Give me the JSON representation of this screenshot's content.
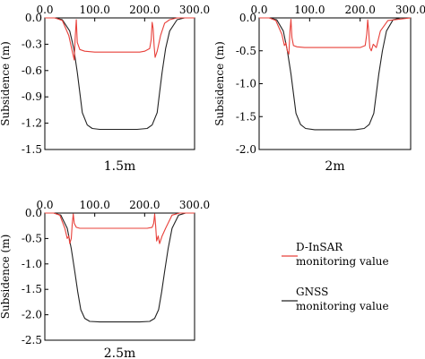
{
  "legend": {
    "items": [
      {
        "label_line1": "D-InSAR",
        "label_line2": "monitoring value",
        "color": "#e8403a"
      },
      {
        "label_line1": "GNSS",
        "label_line2": "monitoring value",
        "color": "#222222"
      }
    ]
  },
  "chart_data": [
    {
      "type": "line",
      "title": "1.5m",
      "ylabel": "Subsidence (m)",
      "xlim": [
        0,
        300
      ],
      "ylim": [
        -1.5,
        0
      ],
      "x_ticks": [
        "0.0",
        "100.0",
        "200.0",
        "300.0"
      ],
      "y_ticks": [
        "0.0",
        "-0.3",
        "-0.6",
        "-0.9",
        "-1.2",
        "-1.5"
      ],
      "series": [
        {
          "name": "GNSS",
          "color": "#222222",
          "x": [
            0,
            20,
            35,
            50,
            58,
            65,
            70,
            75,
            85,
            95,
            110,
            150,
            185,
            205,
            215,
            225,
            230,
            235,
            242,
            250,
            265,
            280,
            300
          ],
          "y": [
            0,
            0,
            -0.02,
            -0.15,
            -0.35,
            -0.62,
            -0.85,
            -1.08,
            -1.22,
            -1.26,
            -1.27,
            -1.27,
            -1.27,
            -1.26,
            -1.22,
            -1.08,
            -0.85,
            -0.62,
            -0.35,
            -0.15,
            -0.02,
            0,
            0
          ]
        },
        {
          "name": "D-InSAR",
          "color": "#e8403a",
          "x": [
            0,
            20,
            35,
            48,
            55,
            59,
            61,
            63,
            65,
            70,
            80,
            100,
            150,
            190,
            200,
            210,
            213,
            215,
            217,
            219,
            221,
            225,
            232,
            240,
            250,
            265,
            300
          ],
          "y": [
            0,
            0,
            -0.03,
            -0.2,
            -0.38,
            -0.48,
            -0.2,
            -0.02,
            -0.28,
            -0.36,
            -0.38,
            -0.39,
            -0.39,
            -0.39,
            -0.38,
            -0.35,
            -0.25,
            -0.05,
            -0.12,
            -0.32,
            -0.45,
            -0.38,
            -0.2,
            -0.06,
            -0.02,
            0,
            0
          ]
        }
      ]
    },
    {
      "type": "line",
      "title": "2m",
      "ylabel": "Subsidence (m)",
      "xlim": [
        0,
        300
      ],
      "ylim": [
        -2.0,
        0
      ],
      "x_ticks": [
        "0.0",
        "100.0",
        "200.0",
        "300.0"
      ],
      "y_ticks": [
        "0.0",
        "-0.5",
        "-1.0",
        "-1.5",
        "-2.0"
      ],
      "series": [
        {
          "name": "GNSS",
          "color": "#222222",
          "x": [
            0,
            20,
            35,
            48,
            56,
            63,
            68,
            73,
            82,
            92,
            110,
            150,
            190,
            208,
            218,
            227,
            232,
            237,
            244,
            252,
            265,
            280,
            300
          ],
          "y": [
            0,
            0,
            -0.03,
            -0.2,
            -0.5,
            -0.85,
            -1.15,
            -1.45,
            -1.62,
            -1.68,
            -1.7,
            -1.7,
            -1.7,
            -1.68,
            -1.62,
            -1.45,
            -1.15,
            -0.85,
            -0.5,
            -0.2,
            -0.03,
            0,
            0
          ]
        },
        {
          "name": "D-InSAR",
          "color": "#e8403a",
          "x": [
            0,
            20,
            33,
            45,
            50,
            53,
            56,
            59,
            61,
            63,
            65,
            68,
            75,
            90,
            150,
            200,
            210,
            213,
            215,
            217,
            219,
            222,
            226,
            232,
            240,
            255,
            300
          ],
          "y": [
            0,
            0,
            -0.04,
            -0.25,
            -0.42,
            -0.38,
            -0.5,
            -0.55,
            -0.2,
            -0.02,
            -0.3,
            -0.42,
            -0.44,
            -0.45,
            -0.45,
            -0.45,
            -0.42,
            -0.25,
            -0.03,
            -0.2,
            -0.45,
            -0.5,
            -0.4,
            -0.45,
            -0.2,
            -0.04,
            0
          ]
        }
      ]
    },
    {
      "type": "line",
      "title": "2.5m",
      "ylabel": "Subsidence (m)",
      "xlim": [
        0,
        300
      ],
      "ylim": [
        -2.5,
        0
      ],
      "x_ticks": [
        "0.0",
        "100.0",
        "200.0",
        "300.0"
      ],
      "y_ticks": [
        "0.0",
        "-0.5",
        "-1.0",
        "-1.5",
        "-2.0",
        "-2.5"
      ],
      "series": [
        {
          "name": "GNSS",
          "color": "#222222",
          "x": [
            0,
            18,
            32,
            45,
            53,
            60,
            66,
            72,
            80,
            90,
            110,
            150,
            190,
            210,
            220,
            228,
            234,
            240,
            247,
            255,
            268,
            282,
            300
          ],
          "y": [
            0,
            0,
            -0.04,
            -0.3,
            -0.7,
            -1.15,
            -1.55,
            -1.9,
            -2.07,
            -2.13,
            -2.14,
            -2.14,
            -2.14,
            -2.13,
            -2.07,
            -1.9,
            -1.55,
            -1.15,
            -0.7,
            -0.3,
            -0.04,
            0,
            0
          ]
        },
        {
          "name": "D-InSAR",
          "color": "#e8403a",
          "x": [
            0,
            18,
            30,
            40,
            45,
            48,
            50,
            53,
            55,
            57,
            59,
            63,
            70,
            80,
            150,
            205,
            215,
            218,
            220,
            222,
            224,
            227,
            230,
            235,
            242,
            255,
            270,
            300
          ],
          "y": [
            0,
            0,
            -0.04,
            -0.3,
            -0.5,
            -0.45,
            -0.6,
            -0.5,
            -0.2,
            -0.02,
            -0.2,
            -0.28,
            -0.3,
            -0.3,
            -0.3,
            -0.3,
            -0.28,
            -0.2,
            -0.02,
            -0.25,
            -0.55,
            -0.45,
            -0.6,
            -0.45,
            -0.3,
            -0.04,
            0,
            0
          ]
        }
      ]
    }
  ]
}
